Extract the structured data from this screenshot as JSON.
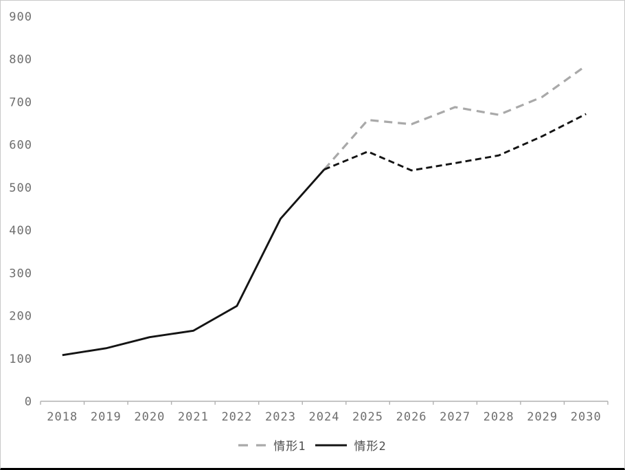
{
  "chart_data": {
    "type": "line",
    "title": "",
    "xlabel": "",
    "ylabel": "",
    "categories": [
      "2018",
      "2019",
      "2020",
      "2021",
      "2022",
      "2023",
      "2024",
      "2025",
      "2026",
      "2027",
      "2028",
      "2029",
      "2030"
    ],
    "series": [
      {
        "name": "情形1",
        "color": "#a9a9a9",
        "line_style": "dashed",
        "values": [
          null,
          null,
          null,
          null,
          null,
          null,
          542,
          658,
          648,
          688,
          670,
          712,
          785
        ]
      },
      {
        "name": "情形2",
        "color": "#141414",
        "line_style": "solid-until-2024-then-dashed",
        "solid_until_index": 6,
        "values": [
          108,
          124,
          150,
          165,
          223,
          427,
          542,
          584,
          540,
          557,
          575,
          620,
          672
        ]
      }
    ],
    "ylim": [
      0,
      900
    ],
    "ytick_step": 100,
    "grid": false,
    "legend_position": "bottom",
    "axis_color": "#b0b0b0",
    "tick_label_color": "#6e6e6e"
  },
  "legend": {
    "items": [
      {
        "label": "情形1"
      },
      {
        "label": "情形2"
      }
    ]
  }
}
